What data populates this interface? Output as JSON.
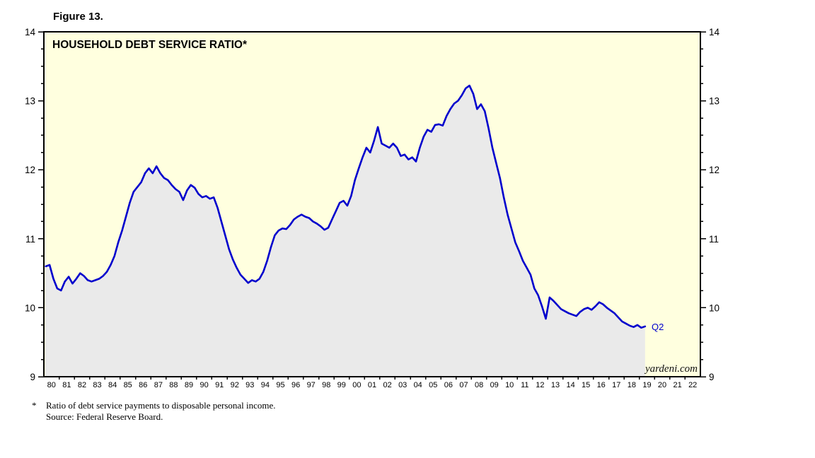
{
  "figure_label": "Figure 13.",
  "chart_title": "HOUSEHOLD DEBT SERVICE RATIO*",
  "end_label": "Q2",
  "watermark": "yardeni.com",
  "footnote_marker": "*",
  "footnote_line1": "Ratio of debt service payments to disposable personal income.",
  "footnote_line2": "Source: Federal Reserve Board.",
  "colors": {
    "line": "#0000CD",
    "end_label": "#0000CD",
    "plot_bg": "#FFFFDF",
    "area_fill": "#EAEAEA",
    "border": "#000000"
  },
  "chart_data": {
    "type": "area",
    "title": "HOUSEHOLD DEBT SERVICE RATIO*",
    "ylabel": "",
    "xlabel": "",
    "ylim": [
      9,
      14
    ],
    "y_ticks": [
      9,
      10,
      11,
      12,
      13,
      14
    ],
    "y_minor_step": 0.25,
    "grid": false,
    "legend_position": "none",
    "x_range_years": [
      1980,
      2023
    ],
    "start": {
      "year": 1980,
      "quarter": 1
    },
    "frequency": "quarterly",
    "x_tick_labels": [
      "80",
      "81",
      "82",
      "83",
      "84",
      "85",
      "86",
      "87",
      "88",
      "89",
      "90",
      "91",
      "92",
      "93",
      "94",
      "95",
      "96",
      "97",
      "98",
      "99",
      "00",
      "01",
      "02",
      "03",
      "04",
      "05",
      "06",
      "07",
      "08",
      "09",
      "10",
      "11",
      "12",
      "13",
      "14",
      "15",
      "16",
      "17",
      "18",
      "19",
      "20",
      "21",
      "22"
    ],
    "last_point_label": "Q2 2019",
    "values": [
      10.6,
      10.62,
      10.42,
      10.28,
      10.25,
      10.38,
      10.45,
      10.35,
      10.42,
      10.5,
      10.46,
      10.4,
      10.38,
      10.4,
      10.42,
      10.46,
      10.52,
      10.62,
      10.75,
      10.95,
      11.12,
      11.32,
      11.52,
      11.68,
      11.75,
      11.82,
      11.95,
      12.02,
      11.95,
      12.05,
      11.95,
      11.88,
      11.85,
      11.78,
      11.72,
      11.68,
      11.56,
      11.7,
      11.78,
      11.74,
      11.65,
      11.6,
      11.62,
      11.58,
      11.6,
      11.45,
      11.25,
      11.05,
      10.85,
      10.7,
      10.58,
      10.48,
      10.42,
      10.36,
      10.4,
      10.38,
      10.42,
      10.52,
      10.68,
      10.88,
      11.05,
      11.12,
      11.15,
      11.14,
      11.2,
      11.28,
      11.32,
      11.35,
      11.32,
      11.3,
      11.25,
      11.22,
      11.18,
      11.13,
      11.16,
      11.28,
      11.4,
      11.52,
      11.55,
      11.48,
      11.62,
      11.85,
      12.02,
      12.18,
      12.32,
      12.25,
      12.42,
      12.62,
      12.38,
      12.35,
      12.32,
      12.38,
      12.32,
      12.2,
      12.22,
      12.15,
      12.18,
      12.12,
      12.32,
      12.48,
      12.58,
      12.55,
      12.65,
      12.66,
      12.64,
      12.78,
      12.88,
      12.96,
      13.0,
      13.08,
      13.18,
      13.22,
      13.1,
      12.88,
      12.95,
      12.85,
      12.6,
      12.32,
      12.1,
      11.88,
      11.6,
      11.35,
      11.15,
      10.95,
      10.82,
      10.68,
      10.58,
      10.48,
      10.28,
      10.18,
      10.02,
      9.84,
      10.15,
      10.1,
      10.04,
      9.98,
      9.95,
      9.92,
      9.9,
      9.88,
      9.94,
      9.98,
      10.0,
      9.97,
      10.02,
      10.08,
      10.05,
      10.0,
      9.96,
      9.92,
      9.86,
      9.8,
      9.77,
      9.74,
      9.72,
      9.75,
      9.71,
      9.73
    ]
  }
}
